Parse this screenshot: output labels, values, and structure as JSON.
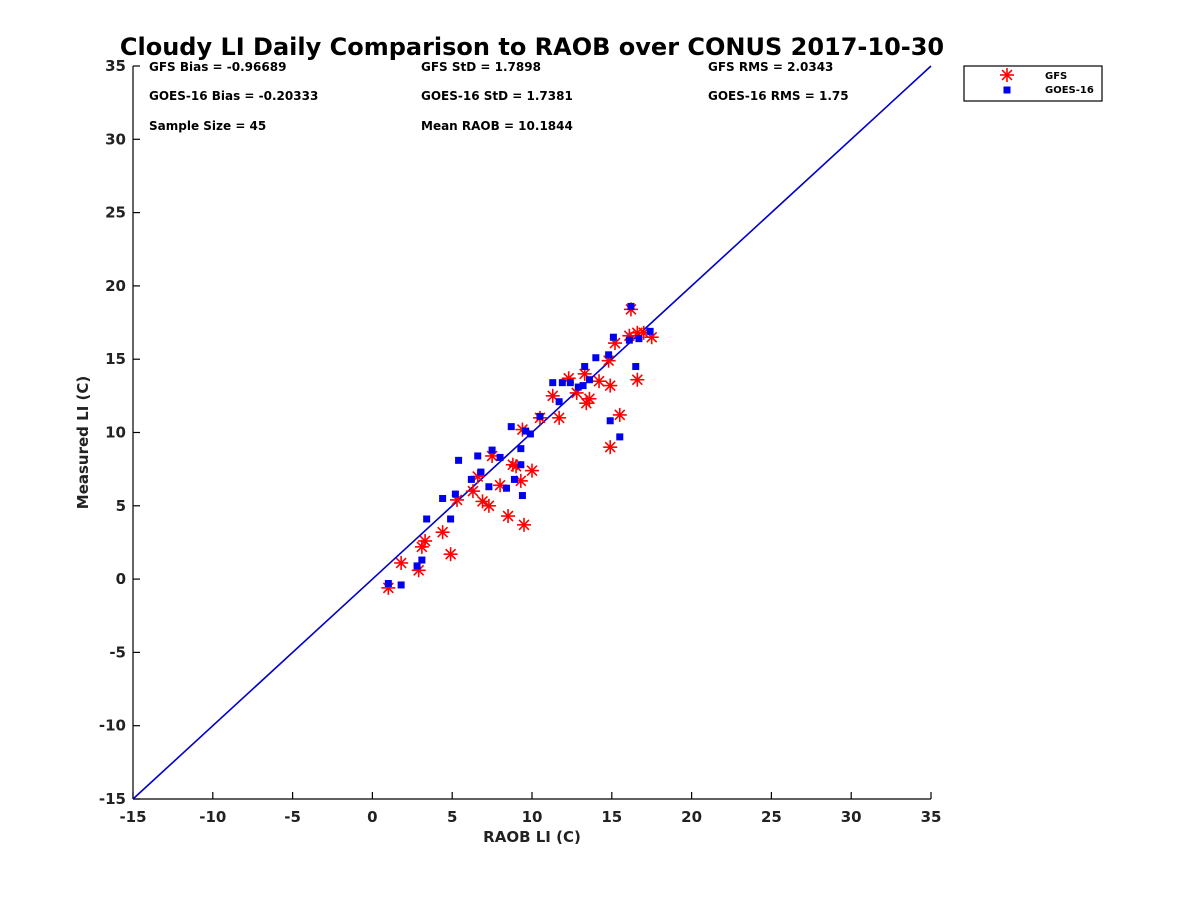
{
  "chart_data": {
    "type": "scatter",
    "title": "Cloudy LI Daily Comparison to RAOB over CONUS 2017-10-30",
    "xlabel": "RAOB LI (C)",
    "ylabel": "Measured LI (C)",
    "xlim": [
      -15,
      35
    ],
    "ylim": [
      -15,
      35
    ],
    "xticks": [
      -15,
      -10,
      -5,
      0,
      5,
      10,
      15,
      20,
      25,
      30,
      35
    ],
    "yticks": [
      -15,
      -10,
      -5,
      0,
      5,
      10,
      15,
      20,
      25,
      30,
      35
    ],
    "grid": false,
    "legend_position": "outside top-right",
    "reference_line": {
      "x": [
        -15,
        35
      ],
      "y": [
        -15,
        35
      ],
      "color": "#0000cc"
    },
    "stats": [
      [
        "GFS Bias = -0.96689",
        "GFS StD = 1.7898",
        "GFS RMS = 2.0343"
      ],
      [
        "GOES-16 Bias = -0.20333",
        "GOES-16 StD = 1.7381",
        "GOES-16 RMS = 1.75"
      ],
      [
        "Sample Size = 45",
        "Mean RAOB = 10.1844",
        ""
      ]
    ],
    "series": [
      {
        "name": "GFS",
        "marker": "asterisk",
        "color": "#ff0000",
        "x": [
          1.0,
          1.8,
          2.9,
          3.1,
          3.3,
          4.4,
          4.9,
          5.3,
          6.3,
          6.6,
          6.9,
          7.3,
          7.5,
          8.0,
          8.5,
          8.8,
          9.0,
          9.3,
          9.4,
          9.5,
          10.0,
          10.5,
          11.3,
          11.7,
          12.3,
          12.8,
          13.3,
          13.4,
          13.6,
          14.2,
          14.8,
          14.9,
          14.9,
          15.2,
          15.5,
          16.1,
          16.2,
          16.6,
          16.6,
          17.0,
          17.5
        ],
        "y": [
          -0.6,
          1.1,
          0.6,
          2.2,
          2.6,
          3.2,
          1.7,
          5.4,
          6.0,
          7.0,
          5.3,
          5.0,
          8.4,
          6.4,
          4.3,
          7.8,
          7.7,
          6.7,
          10.2,
          3.7,
          7.4,
          11.0,
          12.5,
          11.0,
          13.7,
          12.7,
          14.0,
          12.0,
          12.3,
          13.5,
          14.9,
          9.0,
          13.2,
          16.1,
          11.2,
          16.6,
          18.4,
          13.6,
          16.8,
          16.8,
          16.5
        ]
      },
      {
        "name": "GOES-16",
        "marker": "square",
        "color": "#0000ee",
        "x": [
          1.0,
          1.8,
          2.8,
          3.1,
          3.4,
          4.4,
          4.9,
          5.2,
          5.4,
          6.2,
          6.6,
          6.8,
          7.3,
          7.5,
          8.0,
          8.4,
          8.7,
          8.9,
          9.3,
          9.3,
          9.4,
          9.6,
          9.9,
          10.5,
          11.3,
          11.7,
          11.9,
          12.4,
          12.9,
          13.2,
          13.3,
          13.6,
          14.0,
          14.8,
          14.9,
          15.1,
          15.5,
          16.1,
          16.2,
          16.5,
          16.7,
          17.4
        ],
        "y": [
          -0.3,
          -0.4,
          0.9,
          1.3,
          4.1,
          5.5,
          4.1,
          5.8,
          8.1,
          6.8,
          8.4,
          7.3,
          6.3,
          8.8,
          8.3,
          6.2,
          10.4,
          6.8,
          7.8,
          8.9,
          5.7,
          10.1,
          9.9,
          11.1,
          13.4,
          12.1,
          13.4,
          13.4,
          13.1,
          13.2,
          14.5,
          13.6,
          15.1,
          15.3,
          10.8,
          16.5,
          9.7,
          16.3,
          18.6,
          14.5,
          16.4,
          16.9
        ]
      }
    ]
  }
}
